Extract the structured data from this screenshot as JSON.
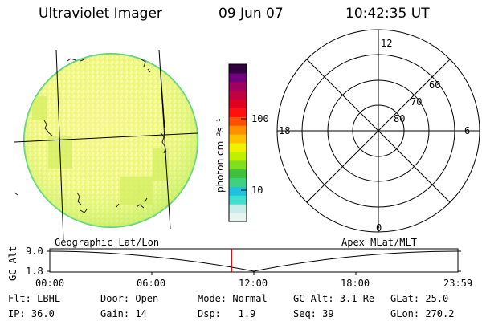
{
  "header": {
    "instrument": "Ultraviolet Imager",
    "date": "09 Jun 07",
    "time": "10:42:35 UT"
  },
  "colorbar": {
    "unit_label": "photon cm⁻²s⁻¹",
    "ticks": [
      "100",
      "10"
    ],
    "colors": [
      "#e8f4f0",
      "#c8ece8",
      "#40e0d0",
      "#20c0e0",
      "#40d080",
      "#40c040",
      "#80e020",
      "#c0f000",
      "#f0f000",
      "#ffc000",
      "#ff9000",
      "#ff5000",
      "#ff1010",
      "#e00020",
      "#c00040",
      "#a00060",
      "#700080",
      "#300040"
    ]
  },
  "polar_plot": {
    "lat_labels": [
      "80",
      "70",
      "60"
    ],
    "mlt_labels": {
      "top": "12",
      "left": "18",
      "right": "6",
      "bottom": "0"
    }
  },
  "altitude_plot": {
    "left_title": "Geographic Lat/Lon",
    "right_title": "Apex MLat/MLT",
    "axis_label": "GC Alt",
    "y_ticks": [
      "9.0",
      "1.8"
    ],
    "x_ticks": [
      "00:00",
      "06:00",
      "12:00",
      "18:00",
      "23:59"
    ],
    "current_time_marker_color": "#cc0000",
    "current_time_fraction": 0.446
  },
  "info": {
    "filter": {
      "label": "Flt:",
      "value": "LBHL"
    },
    "ip": {
      "label": "IP:",
      "value": "36.0"
    },
    "door": {
      "label": "Door:",
      "value": "Open"
    },
    "gain": {
      "label": "Gain:",
      "value": "14"
    },
    "mode": {
      "label": "Mode:",
      "value": "Normal"
    },
    "dsp": {
      "label": "Dsp:",
      "value": "1.9"
    },
    "gc_alt": {
      "label": "GC Alt:",
      "value": "3.1 Re"
    },
    "seq": {
      "label": "Seq:",
      "value": "39"
    },
    "glat": {
      "label": "GLat:",
      "value": "25.0"
    },
    "glon": {
      "label": "GLon:",
      "value": "270.2"
    }
  }
}
